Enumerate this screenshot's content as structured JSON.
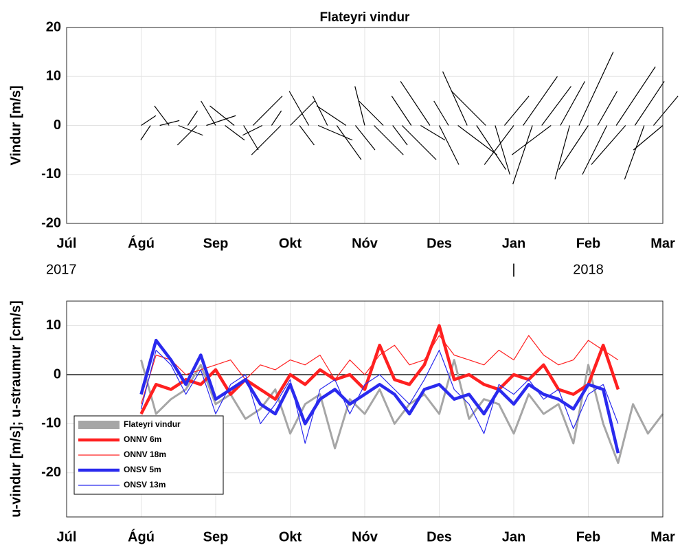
{
  "chart_data": [
    {
      "type": "quiver",
      "title": "Flateyri vindur",
      "y_label": "Vindur [m/s]",
      "xlim": [
        0,
        8
      ],
      "xticks": [
        {
          "value": 0,
          "label": "Júl"
        },
        {
          "value": 1,
          "label": "Ágú"
        },
        {
          "value": 2,
          "label": "Sep"
        },
        {
          "value": 3,
          "label": "Okt"
        },
        {
          "value": 4,
          "label": "Nóv"
        },
        {
          "value": 5,
          "label": "Des"
        },
        {
          "value": 6,
          "label": "Jan"
        },
        {
          "value": 7,
          "label": "Feb"
        },
        {
          "value": 8,
          "label": "Mar"
        }
      ],
      "year_labels": [
        {
          "value": 0,
          "label": "2017"
        },
        {
          "value": 6,
          "label": "|"
        },
        {
          "value": 7,
          "label": "2018"
        }
      ],
      "ylim": [
        -20,
        20
      ],
      "yticks": [
        -20,
        -10,
        0,
        10,
        20
      ],
      "grid": true,
      "color": "#000000",
      "x": [
        1.0,
        1.125,
        1.25,
        1.375,
        1.5,
        1.625,
        1.75,
        1.875,
        2.0,
        2.125,
        2.25,
        2.375,
        2.5,
        2.625,
        2.75,
        2.875,
        3.0,
        3.125,
        3.25,
        3.375,
        3.5,
        3.625,
        3.75,
        3.875,
        4.0,
        4.125,
        4.25,
        4.375,
        4.5,
        4.625,
        4.75,
        4.875,
        5.0,
        5.125,
        5.25,
        5.375,
        5.5,
        5.625,
        5.75,
        5.875,
        6.0,
        6.125,
        6.25,
        6.375,
        6.5,
        6.625,
        6.75,
        6.875,
        7.0,
        7.125,
        7.25,
        7.375,
        7.5,
        7.625,
        7.75,
        7.875,
        8.0
      ],
      "u": [
        3,
        -2,
        4,
        -3,
        5,
        2,
        -4,
        6,
        -3,
        4,
        -5,
        3,
        6,
        -4,
        2,
        -6,
        5,
        3,
        -4,
        7,
        -3,
        5,
        -6,
        4,
        -2,
        6,
        -5,
        3,
        7,
        -4,
        5,
        -6,
        4,
        -3,
        8,
        -5,
        6,
        -7,
        3,
        5,
        -6,
        7,
        -4,
        6,
        -8,
        5,
        -3,
        7,
        -6,
        4,
        -5,
        8,
        -7,
        6,
        -4,
        5,
        -6
      ],
      "v": [
        2,
        -3,
        1,
        4,
        -2,
        3,
        -4,
        2,
        5,
        -3,
        4,
        -5,
        6,
        -2,
        3,
        -6,
        5,
        -4,
        7,
        -3,
        6,
        -7,
        4,
        -5,
        8,
        -6,
        5,
        -4,
        -7,
        6,
        -3,
        9,
        -8,
        5,
        -6,
        11,
        -9,
        7,
        -10,
        6,
        -8,
        10,
        -12,
        8,
        -6,
        9,
        -11,
        15,
        -9,
        7,
        -10,
        12,
        -8,
        9,
        -11,
        6,
        -5
      ]
    },
    {
      "type": "line",
      "y_label": "u-vindur [m/s]; u-straumur [cm/s]",
      "xlim": [
        0,
        8
      ],
      "xticks": [
        {
          "value": 0,
          "label": "Júl"
        },
        {
          "value": 1,
          "label": "Ágú"
        },
        {
          "value": 2,
          "label": "Sep"
        },
        {
          "value": 3,
          "label": "Okt"
        },
        {
          "value": 4,
          "label": "Nóv"
        },
        {
          "value": 5,
          "label": "Des"
        },
        {
          "value": 6,
          "label": "Jan"
        },
        {
          "value": 7,
          "label": "Feb"
        },
        {
          "value": 8,
          "label": "Mar"
        }
      ],
      "year_labels": [
        {
          "value": 0,
          "label": "2017"
        },
        {
          "value": 6,
          "label": "|"
        },
        {
          "value": 7,
          "label": "2018"
        }
      ],
      "ylim": [
        -29,
        15
      ],
      "yticks": [
        -20,
        -10,
        0,
        10
      ],
      "grid": true,
      "hline": 0,
      "legend": "lower left",
      "x": [
        1.0,
        1.2,
        1.4,
        1.6,
        1.8,
        2.0,
        2.2,
        2.4,
        2.6,
        2.8,
        3.0,
        3.2,
        3.4,
        3.6,
        3.8,
        4.0,
        4.2,
        4.4,
        4.6,
        4.8,
        5.0,
        5.2,
        5.4,
        5.6,
        5.8,
        6.0,
        6.2,
        6.4,
        6.6,
        6.8,
        7.0,
        7.2,
        7.4,
        7.6,
        7.8,
        8.0
      ],
      "series": [
        {
          "name": "Flateyri vindur",
          "color": "#a6a6a6",
          "width": 3,
          "values": [
            3,
            -8,
            -5,
            -3,
            2,
            -6,
            -4,
            -9,
            -7,
            -3,
            -12,
            -6,
            -4,
            -15,
            -5,
            -8,
            -3,
            -10,
            -6,
            -4,
            -8,
            3,
            -9,
            -5,
            -6,
            -12,
            -4,
            -8,
            -6,
            -14,
            2,
            -10,
            -18,
            -6,
            -12,
            -8
          ]
        },
        {
          "name": "ONNV 6m",
          "color": "#ff2020",
          "width": 4.5,
          "values": [
            -8,
            -2,
            -3,
            -1,
            -2,
            1,
            -4,
            -1,
            -3,
            -5,
            0,
            -2,
            1,
            -1,
            0,
            -3,
            6,
            -1,
            -2,
            2,
            10,
            -1,
            0,
            -2,
            -3,
            0,
            -1,
            2,
            -3,
            -4,
            -2,
            6,
            -3,
            null,
            null,
            null
          ]
        },
        {
          "name": "ONNV 18m",
          "color": "#ff2020",
          "width": 1.2,
          "values": [
            -6,
            4,
            3,
            0,
            1,
            2,
            3,
            -1,
            2,
            1,
            3,
            2,
            4,
            -1,
            3,
            0,
            4,
            6,
            2,
            3,
            8,
            4,
            3,
            2,
            5,
            3,
            8,
            4,
            2,
            3,
            7,
            5,
            3,
            null,
            null,
            null
          ]
        },
        {
          "name": "ONSV 5m",
          "color": "#2a2aee",
          "width": 4.5,
          "values": [
            -4,
            7,
            3,
            -2,
            4,
            -5,
            -3,
            -1,
            -6,
            -8,
            -2,
            -10,
            -5,
            -3,
            -6,
            -4,
            -2,
            -4,
            -8,
            -3,
            -2,
            -5,
            -4,
            -8,
            -3,
            -6,
            -2,
            -4,
            -5,
            -7,
            -2,
            -3,
            -16,
            null,
            null,
            null
          ]
        },
        {
          "name": "ONSV 13m",
          "color": "#2a2aee",
          "width": 1.2,
          "values": [
            -7,
            5,
            2,
            -4,
            1,
            -8,
            -2,
            0,
            -10,
            -6,
            -1,
            -14,
            -3,
            -1,
            -8,
            -2,
            0,
            -3,
            -6,
            -1,
            5,
            -3,
            -6,
            -12,
            -2,
            -4,
            -1,
            -5,
            -3,
            -11,
            -4,
            -2,
            -10,
            null,
            null,
            null
          ]
        }
      ]
    }
  ]
}
